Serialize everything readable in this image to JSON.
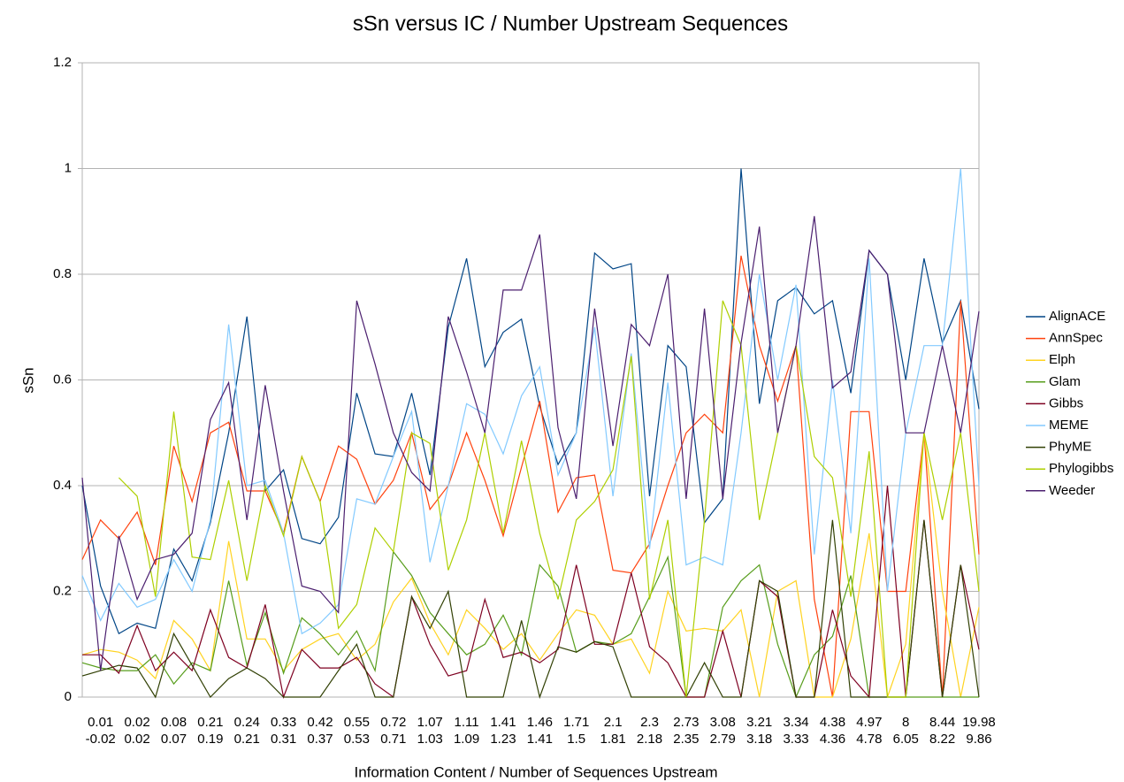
{
  "chart_data": {
    "type": "line",
    "title": "sSn versus IC / Number Upstream Sequences",
    "xlabel": "Information Content / Number of Sequences Upstream",
    "ylabel": "sSn",
    "ylim": [
      0,
      1.2
    ],
    "yticks": [
      0,
      0.2,
      0.4,
      0.6,
      0.8,
      1,
      1.2
    ],
    "grid": true,
    "legend": "right",
    "categories": [
      null,
      [
        "0.01",
        "-0.02"
      ],
      null,
      [
        "0.02",
        "0.02"
      ],
      null,
      [
        "0.08",
        "0.07"
      ],
      null,
      [
        "0.21",
        "0.19"
      ],
      null,
      [
        "0.24",
        "0.21"
      ],
      null,
      [
        "0.33",
        "0.31"
      ],
      null,
      [
        "0.42",
        "0.37"
      ],
      null,
      [
        "0.55",
        "0.53"
      ],
      null,
      [
        "0.72",
        "0.71"
      ],
      null,
      [
        "1.07",
        "1.03"
      ],
      null,
      [
        "1.11",
        "1.09"
      ],
      null,
      [
        "1.41",
        "1.23"
      ],
      null,
      [
        "1.46",
        "1.41"
      ],
      null,
      [
        "1.71",
        "1.5"
      ],
      null,
      [
        "2.1",
        "1.81"
      ],
      null,
      [
        "2.3",
        "2.18"
      ],
      null,
      [
        "2.73",
        "2.35"
      ],
      null,
      [
        "3.08",
        "2.79"
      ],
      null,
      [
        "3.21",
        "3.18"
      ],
      null,
      [
        "3.34",
        "3.33"
      ],
      null,
      [
        "4.38",
        "4.36"
      ],
      null,
      [
        "4.97",
        "4.78"
      ],
      null,
      [
        "8",
        "6.05"
      ],
      null,
      [
        "8.44",
        "8.22"
      ],
      null,
      [
        "19.98",
        "9.86"
      ]
    ],
    "series": [
      {
        "name": "AlignACE",
        "color": "#004586",
        "values": [
          0.4,
          0.21,
          0.12,
          0.14,
          0.13,
          0.28,
          0.22,
          0.33,
          0.5,
          0.72,
          0.39,
          0.43,
          0.3,
          0.29,
          0.34,
          0.575,
          0.46,
          0.455,
          0.575,
          0.42,
          0.7,
          0.83,
          0.625,
          0.69,
          0.715,
          0.55,
          0.44,
          0.5,
          0.84,
          0.81,
          0.82,
          0.38,
          0.665,
          0.625,
          0.33,
          0.375,
          1.0,
          0.555,
          0.75,
          0.775,
          0.725,
          0.75,
          0.575,
          0.845,
          0.8,
          0.6,
          0.83,
          0.67,
          0.75,
          0.545
        ]
      },
      {
        "name": "AnnSpec",
        "color": "#ff420e",
        "values": [
          0.26,
          0.335,
          0.3,
          0.35,
          0.25,
          0.475,
          0.37,
          0.5,
          0.52,
          0.39,
          0.39,
          0.31,
          0.455,
          0.37,
          0.475,
          0.45,
          0.365,
          0.41,
          0.5,
          0.355,
          0.4,
          0.5,
          0.41,
          0.305,
          0.435,
          0.56,
          0.35,
          0.415,
          0.42,
          0.24,
          0.235,
          0.29,
          0.4,
          0.5,
          0.535,
          0.5,
          0.835,
          0.665,
          0.56,
          0.665,
          0.185,
          0,
          0.54,
          0.54,
          0.2,
          0.2,
          0.5,
          0,
          0.75,
          0.27
        ]
      },
      {
        "name": "Elph",
        "color": "#ffd320",
        "values": [
          0.08,
          0.09,
          0.085,
          0.07,
          0.035,
          0.145,
          0.11,
          0.05,
          0.295,
          0.11,
          0.11,
          0.05,
          0.09,
          0.11,
          0.12,
          0.07,
          0.1,
          0.18,
          0.225,
          0.14,
          0.08,
          0.165,
          0.13,
          0.09,
          0.12,
          0.07,
          0.12,
          0.165,
          0.155,
          0.1,
          0.11,
          0.045,
          0.2,
          0.125,
          0.13,
          0.125,
          0.165,
          0,
          0.2,
          0.22,
          0,
          0,
          0.11,
          0.31,
          0,
          0.1,
          0.5,
          0.2,
          0,
          0.17
        ]
      },
      {
        "name": "Glam",
        "color": "#579d1c",
        "values": [
          0.065,
          0.055,
          0.05,
          0.05,
          0.08,
          0.025,
          0.065,
          0.05,
          0.22,
          0.06,
          0.16,
          0.045,
          0.15,
          0.12,
          0.08,
          0.125,
          0.05,
          0.275,
          0.23,
          0.16,
          0.12,
          0.08,
          0.1,
          0.155,
          0.08,
          0.25,
          0.21,
          0.085,
          0.105,
          0.1,
          0.12,
          0.19,
          0.265,
          0,
          0,
          0.17,
          0.22,
          0.25,
          0.1,
          0,
          0.08,
          0.115,
          0.23,
          0,
          0,
          0,
          0,
          0,
          0,
          0
        ]
      },
      {
        "name": "Gibbs",
        "color": "#7e0021",
        "values": [
          0.08,
          0.08,
          0.045,
          0.135,
          0.05,
          0.085,
          0.05,
          0.165,
          0.075,
          0.055,
          0.175,
          0,
          0.09,
          0.055,
          0.055,
          0.075,
          0.025,
          0,
          0.19,
          0.1,
          0.04,
          0.05,
          0.185,
          0.075,
          0.085,
          0.065,
          0.09,
          0.25,
          0.1,
          0.1,
          0.235,
          0.095,
          0.065,
          0,
          0,
          0.125,
          0,
          0.22,
          0.19,
          0,
          0,
          0.165,
          0.04,
          0,
          0.4,
          0,
          0.335,
          0,
          0.25,
          0.09
        ]
      },
      {
        "name": "MEME",
        "color": "#83caff",
        "values": [
          0.23,
          0.145,
          0.215,
          0.17,
          0.185,
          0.26,
          0.2,
          0.335,
          0.705,
          0.4,
          0.41,
          0.31,
          0.12,
          0.14,
          0.175,
          0.375,
          0.365,
          0.455,
          0.54,
          0.255,
          0.4,
          0.555,
          0.535,
          0.46,
          0.57,
          0.625,
          0.42,
          0.5,
          0.7,
          0.38,
          0.65,
          0.28,
          0.595,
          0.25,
          0.265,
          0.25,
          0.5,
          0.8,
          0.6,
          0.78,
          0.27,
          0.6,
          0.31,
          0.83,
          0.2,
          0.5,
          0.665,
          0.665,
          1.0,
          0.4
        ]
      },
      {
        "name": "PhyME",
        "color": "#314004",
        "values": [
          0.04,
          0.05,
          0.06,
          0.055,
          0,
          0.12,
          0.06,
          0,
          0.035,
          0.055,
          0.035,
          0,
          0,
          0,
          0.05,
          0.1,
          0,
          0,
          0.19,
          0.13,
          0.2,
          0,
          0,
          0,
          0.145,
          0,
          0.095,
          0.085,
          0.105,
          0.095,
          0,
          0,
          0,
          0,
          0.065,
          0,
          0,
          0.22,
          0.2,
          0,
          0,
          0.335,
          0,
          0,
          0,
          0,
          0.335,
          0,
          0.25,
          0
        ]
      },
      {
        "name": "Phylogibbs",
        "color": "#aecf00",
        "values": [
          null,
          null,
          0.415,
          0.38,
          0.19,
          0.54,
          0.265,
          0.26,
          0.41,
          0.22,
          0.4,
          0.305,
          0.455,
          0.37,
          0.13,
          0.175,
          0.32,
          0.275,
          0.5,
          0.48,
          0.24,
          0.335,
          0.5,
          0.31,
          0.485,
          0.31,
          0.185,
          0.335,
          0.37,
          0.43,
          0.645,
          0.185,
          0.335,
          0,
          0.335,
          0.75,
          0.665,
          0.335,
          0.5,
          0.665,
          0.455,
          0.415,
          0.19,
          0.465,
          0,
          0,
          0.5,
          0.335,
          0.5,
          0.2
        ]
      },
      {
        "name": "Weeder",
        "color": "#4b1f6f",
        "values": [
          0.415,
          0.05,
          0.305,
          0.185,
          0.26,
          0.27,
          0.31,
          0.525,
          0.595,
          0.335,
          0.59,
          0.39,
          0.21,
          0.2,
          0.16,
          0.75,
          0.63,
          0.5,
          0.425,
          0.39,
          0.72,
          0.615,
          0.5,
          0.77,
          0.77,
          0.875,
          0.51,
          0.375,
          0.735,
          0.475,
          0.705,
          0.665,
          0.8,
          0.375,
          0.735,
          0.375,
          0.67,
          0.89,
          0.5,
          0.665,
          0.91,
          0.585,
          0.615,
          0.845,
          0.8,
          0.5,
          0.5,
          0.665,
          0.5,
          0.73
        ]
      }
    ]
  }
}
